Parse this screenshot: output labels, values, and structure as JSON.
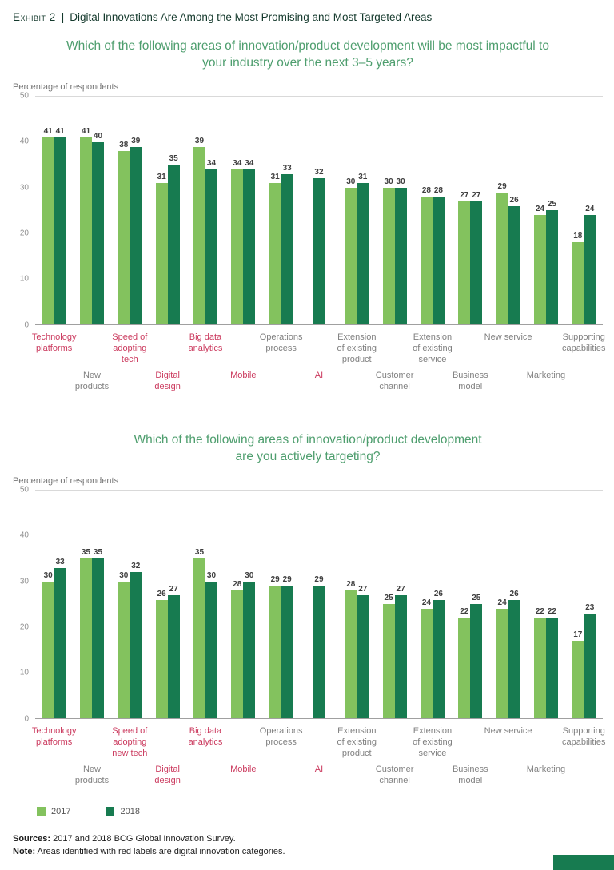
{
  "header": {
    "exhibit_label": "Exhibit 2",
    "separator": "|",
    "title": "Digital Innovations Are Among the Most Promising and Most Targeted Areas"
  },
  "legend": {
    "items": [
      {
        "label": "2017",
        "color": "#83C25E"
      },
      {
        "label": "2018",
        "color": "#177B50"
      }
    ]
  },
  "footer": {
    "sources_label": "Sources:",
    "sources_text": " 2017 and 2018 BCG Global Innovation Survey.",
    "note_label": "Note:",
    "note_text": " Areas identified with red labels are digital innovation categories."
  },
  "colors": {
    "bar_2017": "#83C25E",
    "bar_2018": "#177B50",
    "chart_title_green": "#4E9E6E",
    "header_dark_green": "#14392C",
    "digital_label_red": "#CB3A5E",
    "category_label_gray": "#808080"
  },
  "chart_data": [
    {
      "type": "bar",
      "title": "Which of the following areas of innovation/product development will be most impactful to\nyour industry over the next 3–5 years?",
      "ylabel": "Percentage of respondents",
      "ylim": [
        0,
        50
      ],
      "yticks": [
        0,
        10,
        20,
        30,
        40,
        50
      ],
      "grid": "rules at 0 and 50 only",
      "legend_position": "shared bottom legend",
      "categories": [
        {
          "label": "Technology platforms",
          "digital": true
        },
        {
          "label": "New products",
          "digital": false
        },
        {
          "label": "Speed of adopting tech",
          "digital": true
        },
        {
          "label": "Digital design",
          "digital": true
        },
        {
          "label": "Big data analytics",
          "digital": true
        },
        {
          "label": "Mobile",
          "digital": true
        },
        {
          "label": "Operations process",
          "digital": false
        },
        {
          "label": "AI",
          "digital": true
        },
        {
          "label": "Extension of existing product",
          "digital": false
        },
        {
          "label": "Customer channel",
          "digital": false
        },
        {
          "label": "Extension of existing service",
          "digital": false
        },
        {
          "label": "Business model",
          "digital": false
        },
        {
          "label": "New service",
          "digital": false
        },
        {
          "label": "Marketing",
          "digital": false
        },
        {
          "label": "Supporting capabilities",
          "digital": false
        }
      ],
      "series": [
        {
          "name": "2017",
          "values": [
            41,
            41,
            38,
            31,
            39,
            34,
            31,
            null,
            30,
            30,
            28,
            27,
            29,
            24,
            18
          ]
        },
        {
          "name": "2018",
          "values": [
            41,
            40,
            39,
            35,
            34,
            34,
            33,
            32,
            31,
            30,
            28,
            27,
            26,
            25,
            24
          ]
        }
      ]
    },
    {
      "type": "bar",
      "title": "Which of the following areas of innovation/product development\nare you actively targeting?",
      "ylabel": "Percentage of respondents",
      "ylim": [
        0,
        50
      ],
      "yticks": [
        0,
        10,
        20,
        30,
        40,
        50
      ],
      "grid": "rules at 0 and 50 only",
      "legend_position": "shared bottom legend",
      "categories": [
        {
          "label": "Technology platforms",
          "digital": true
        },
        {
          "label": "New products",
          "digital": false
        },
        {
          "label": "Speed of adopting new tech",
          "digital": true
        },
        {
          "label": "Digital design",
          "digital": true
        },
        {
          "label": "Big data analytics",
          "digital": true
        },
        {
          "label": "Mobile",
          "digital": true
        },
        {
          "label": "Operations process",
          "digital": false
        },
        {
          "label": "AI",
          "digital": true
        },
        {
          "label": "Extension of existing product",
          "digital": false
        },
        {
          "label": "Customer channel",
          "digital": false
        },
        {
          "label": "Extension of existing service",
          "digital": false
        },
        {
          "label": "Business model",
          "digital": false
        },
        {
          "label": "New service",
          "digital": false
        },
        {
          "label": "Marketing",
          "digital": false
        },
        {
          "label": "Supporting capabilities",
          "digital": false
        }
      ],
      "series": [
        {
          "name": "2017",
          "values": [
            30,
            35,
            30,
            26,
            35,
            28,
            29,
            null,
            28,
            25,
            24,
            22,
            24,
            22,
            17
          ]
        },
        {
          "name": "2018",
          "values": [
            33,
            35,
            32,
            27,
            30,
            30,
            29,
            29,
            27,
            27,
            26,
            25,
            26,
            22,
            23
          ]
        }
      ]
    }
  ]
}
